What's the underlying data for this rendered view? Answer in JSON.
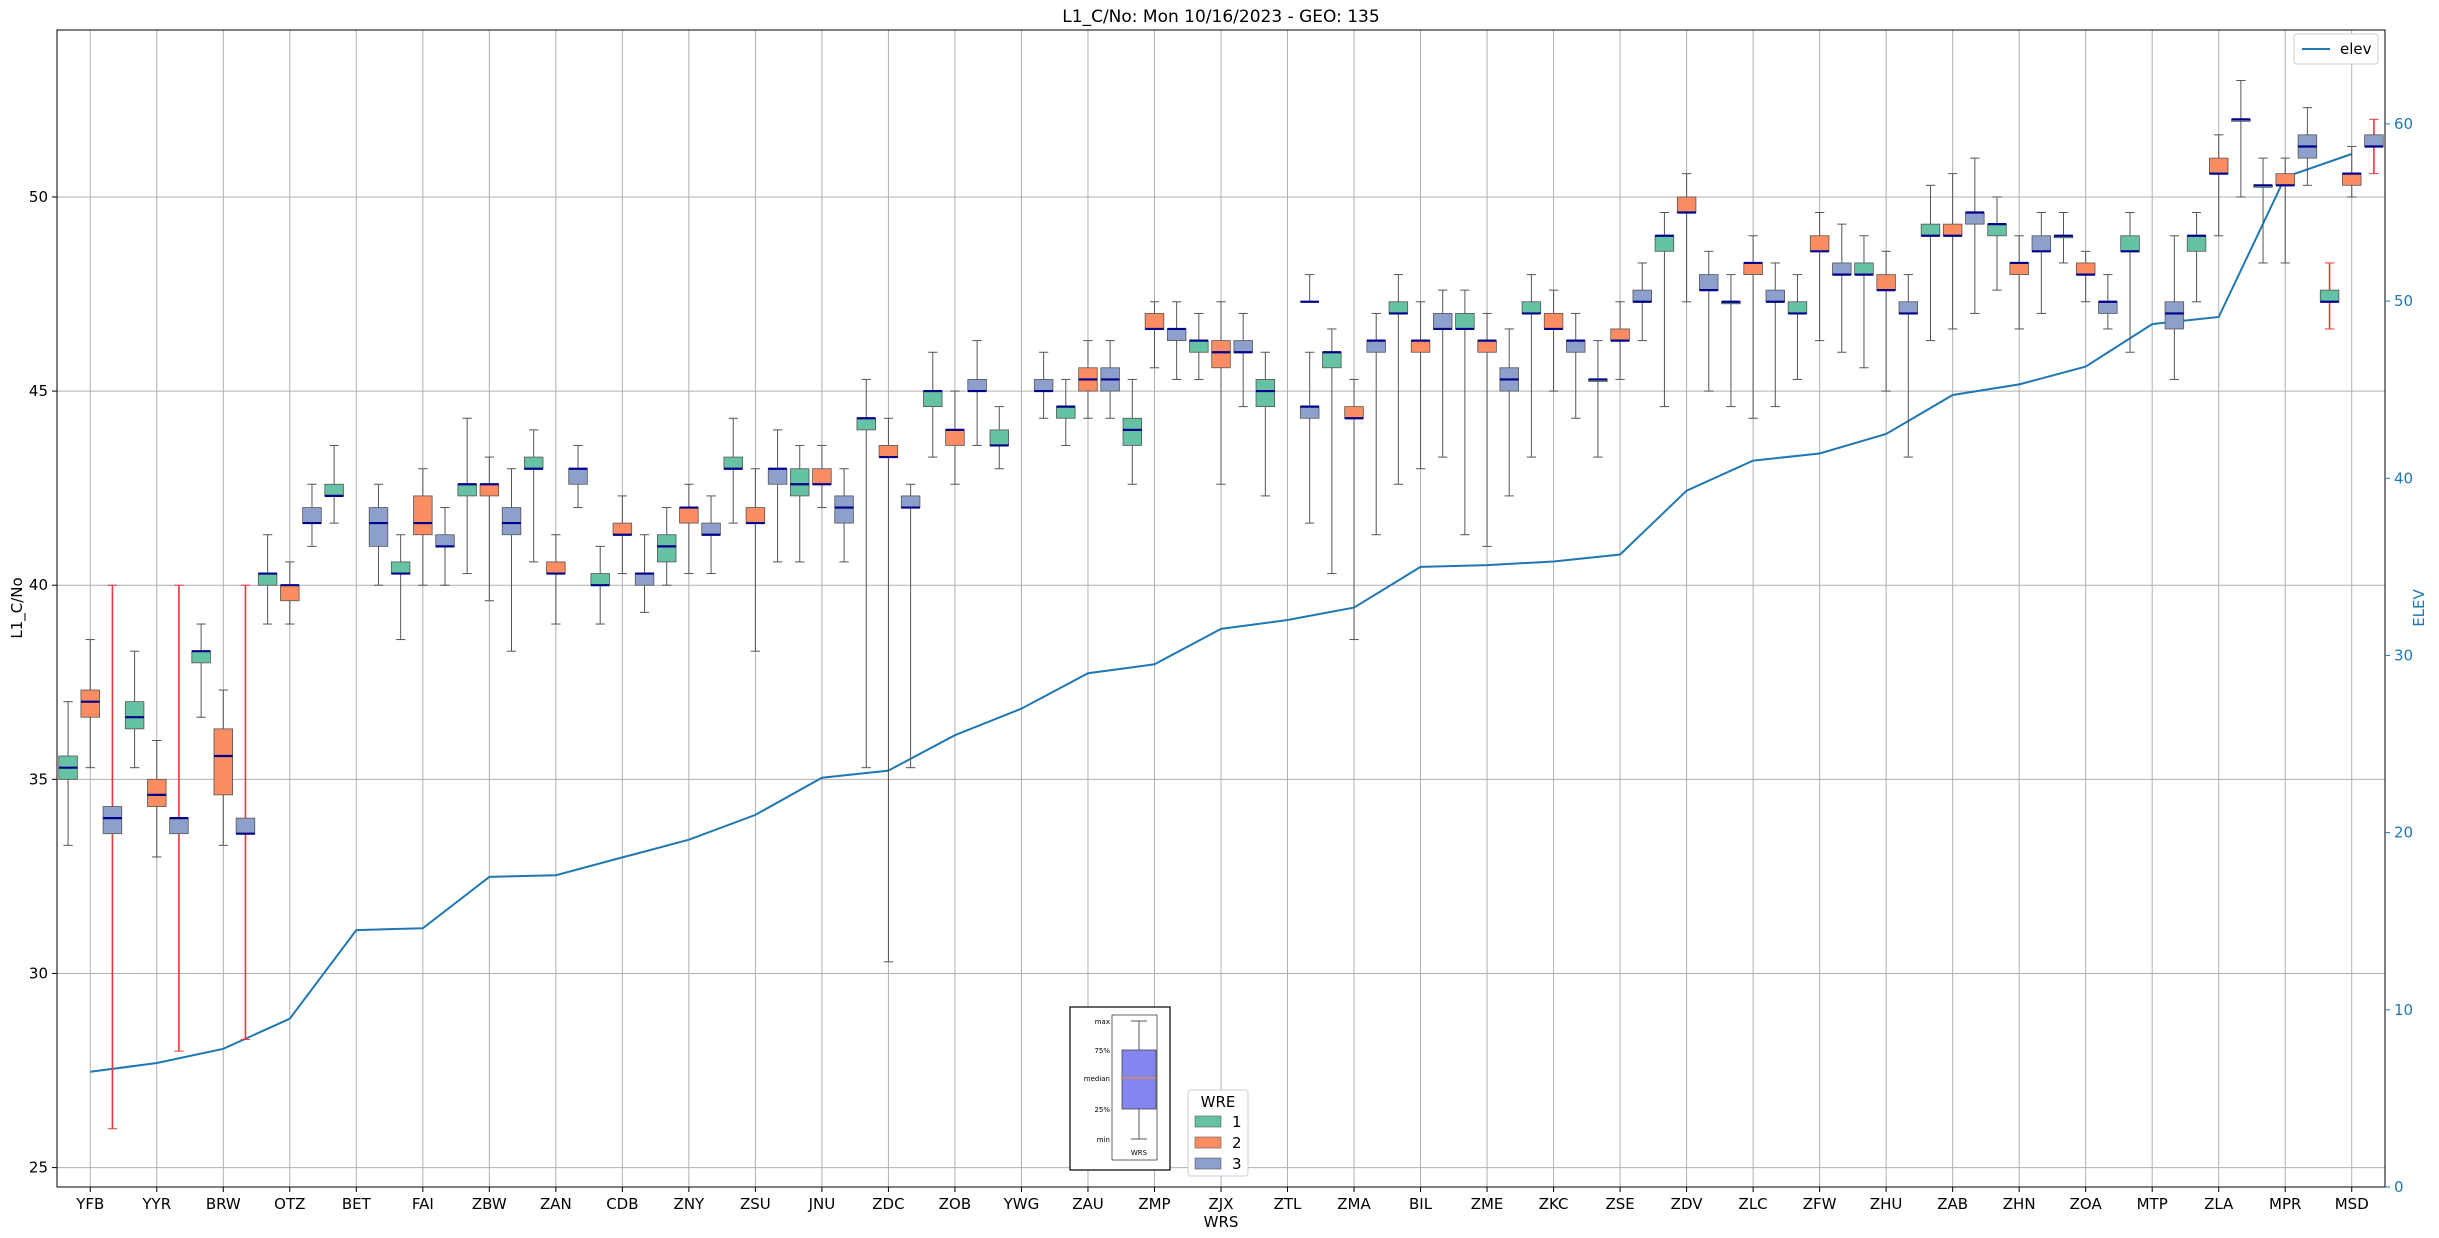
{
  "chart_data": {
    "type": "box",
    "title": "L1_C/No: Mon 10/16/2023 - GEO: 135",
    "xlabel": "WRS",
    "ylabel": "L1_C/No",
    "y2label": "ELEV",
    "ylim": [
      24.5,
      54.3
    ],
    "y2lim": [
      0,
      65.3
    ],
    "yticks": [
      25,
      30,
      35,
      40,
      45,
      50
    ],
    "y2ticks": [
      0,
      10,
      20,
      30,
      40,
      50,
      60
    ],
    "grid": true,
    "categories": [
      "YFB",
      "YYR",
      "BRW",
      "OTZ",
      "BET",
      "FAI",
      "ZBW",
      "ZAN",
      "CDB",
      "ZNY",
      "ZSU",
      "JNU",
      "ZDC",
      "ZOB",
      "YWG",
      "ZAU",
      "ZMP",
      "ZJX",
      "ZTL",
      "ZMA",
      "BIL",
      "ZME",
      "ZKC",
      "ZSE",
      "ZDV",
      "ZLC",
      "ZFW",
      "ZHU",
      "ZAB",
      "ZHN",
      "ZOA",
      "MTP",
      "ZLA",
      "MPR",
      "MSD"
    ],
    "series_colors": {
      "1": "#66c2a5",
      "2": "#fc8d62",
      "3": "#8da0cb"
    },
    "legend_box": {
      "title": "WRE",
      "labels": [
        "1",
        "2",
        "3"
      ]
    },
    "legend_line": {
      "label": "elev",
      "color": "#1f77b4"
    },
    "boxes": [
      {
        "cat": "YFB",
        "wre": 1,
        "min": 33.3,
        "q1": 35.0,
        "med": 35.3,
        "q3": 35.6,
        "max": 37.0
      },
      {
        "cat": "YFB",
        "wre": 2,
        "min": 35.3,
        "q1": 36.6,
        "med": 37.0,
        "q3": 37.3,
        "max": 38.6
      },
      {
        "cat": "YFB",
        "wre": 3,
        "min": 26.0,
        "q1": 33.6,
        "med": 34.0,
        "q3": 34.3,
        "max": 40.0
      },
      {
        "cat": "YYR",
        "wre": 1,
        "min": 35.3,
        "q1": 36.3,
        "med": 36.6,
        "q3": 37.0,
        "max": 38.3
      },
      {
        "cat": "YYR",
        "wre": 2,
        "min": 33.0,
        "q1": 34.3,
        "med": 34.6,
        "q3": 35.0,
        "max": 36.0
      },
      {
        "cat": "YYR",
        "wre": 3,
        "min": 28.0,
        "q1": 33.6,
        "med": 34.0,
        "q3": 34.0,
        "max": 40.0
      },
      {
        "cat": "BRW",
        "wre": 1,
        "min": 36.6,
        "q1": 38.0,
        "med": 38.3,
        "q3": 38.3,
        "max": 39.0
      },
      {
        "cat": "BRW",
        "wre": 2,
        "min": 33.3,
        "q1": 34.6,
        "med": 35.6,
        "q3": 36.3,
        "max": 37.3
      },
      {
        "cat": "BRW",
        "wre": 3,
        "min": 28.3,
        "q1": 33.6,
        "med": 33.6,
        "q3": 34.0,
        "max": 40.0
      },
      {
        "cat": "OTZ",
        "wre": 1,
        "min": 39.0,
        "q1": 40.0,
        "med": 40.3,
        "q3": 40.3,
        "max": 41.3
      },
      {
        "cat": "OTZ",
        "wre": 2,
        "min": 39.0,
        "q1": 39.6,
        "med": 40.0,
        "q3": 40.0,
        "max": 40.6
      },
      {
        "cat": "OTZ",
        "wre": 3,
        "min": 41.0,
        "q1": 41.6,
        "med": 41.6,
        "q3": 42.0,
        "max": 42.6
      },
      {
        "cat": "BET",
        "wre": 1,
        "min": 41.6,
        "q1": 42.3,
        "med": 42.3,
        "q3": 42.6,
        "max": 43.6
      },
      {
        "cat": "BET",
        "wre": 3,
        "min": 40.0,
        "q1": 41.0,
        "med": 41.6,
        "q3": 42.0,
        "max": 42.6
      },
      {
        "cat": "FAI",
        "wre": 1,
        "min": 38.6,
        "q1": 40.3,
        "med": 40.3,
        "q3": 40.6,
        "max": 41.3
      },
      {
        "cat": "FAI",
        "wre": 2,
        "min": 40.0,
        "q1": 41.3,
        "med": 41.6,
        "q3": 42.3,
        "max": 43.0
      },
      {
        "cat": "FAI",
        "wre": 3,
        "min": 40.0,
        "q1": 41.0,
        "med": 41.0,
        "q3": 41.3,
        "max": 42.0
      },
      {
        "cat": "ZBW",
        "wre": 1,
        "min": 40.3,
        "q1": 42.3,
        "med": 42.6,
        "q3": 42.6,
        "max": 44.3
      },
      {
        "cat": "ZBW",
        "wre": 2,
        "min": 39.6,
        "q1": 42.3,
        "med": 42.6,
        "q3": 42.6,
        "max": 43.3
      },
      {
        "cat": "ZBW",
        "wre": 3,
        "min": 38.3,
        "q1": 41.3,
        "med": 41.6,
        "q3": 42.0,
        "max": 43.0
      },
      {
        "cat": "ZAN",
        "wre": 1,
        "min": 40.6,
        "q1": 43.0,
        "med": 43.0,
        "q3": 43.3,
        "max": 44.0
      },
      {
        "cat": "ZAN",
        "wre": 2,
        "min": 39.0,
        "q1": 40.3,
        "med": 40.3,
        "q3": 40.6,
        "max": 41.3
      },
      {
        "cat": "ZAN",
        "wre": 3,
        "min": 42.0,
        "q1": 42.6,
        "med": 43.0,
        "q3": 43.0,
        "max": 43.6
      },
      {
        "cat": "CDB",
        "wre": 1,
        "min": 39.0,
        "q1": 40.0,
        "med": 40.0,
        "q3": 40.3,
        "max": 41.0
      },
      {
        "cat": "CDB",
        "wre": 2,
        "min": 40.3,
        "q1": 41.3,
        "med": 41.3,
        "q3": 41.6,
        "max": 42.3
      },
      {
        "cat": "CDB",
        "wre": 3,
        "min": 39.3,
        "q1": 40.0,
        "med": 40.3,
        "q3": 40.3,
        "max": 41.3
      },
      {
        "cat": "ZNY",
        "wre": 1,
        "min": 40.0,
        "q1": 40.6,
        "med": 41.0,
        "q3": 41.3,
        "max": 42.0
      },
      {
        "cat": "ZNY",
        "wre": 2,
        "min": 40.3,
        "q1": 41.6,
        "med": 42.0,
        "q3": 42.0,
        "max": 42.6
      },
      {
        "cat": "ZNY",
        "wre": 3,
        "min": 40.3,
        "q1": 41.3,
        "med": 41.3,
        "q3": 41.6,
        "max": 42.3
      },
      {
        "cat": "ZSU",
        "wre": 1,
        "min": 41.6,
        "q1": 43.0,
        "med": 43.0,
        "q3": 43.3,
        "max": 44.3
      },
      {
        "cat": "ZSU",
        "wre": 2,
        "min": 38.3,
        "q1": 41.6,
        "med": 41.6,
        "q3": 42.0,
        "max": 43.0
      },
      {
        "cat": "ZSU",
        "wre": 3,
        "min": 40.6,
        "q1": 42.6,
        "med": 43.0,
        "q3": 43.0,
        "max": 44.0
      },
      {
        "cat": "JNU",
        "wre": 1,
        "min": 40.6,
        "q1": 42.3,
        "med": 42.6,
        "q3": 43.0,
        "max": 43.6
      },
      {
        "cat": "JNU",
        "wre": 2,
        "min": 42.0,
        "q1": 42.6,
        "med": 42.6,
        "q3": 43.0,
        "max": 43.6
      },
      {
        "cat": "JNU",
        "wre": 3,
        "min": 40.6,
        "q1": 41.6,
        "med": 42.0,
        "q3": 42.3,
        "max": 43.0
      },
      {
        "cat": "ZDC",
        "wre": 1,
        "min": 35.3,
        "q1": 44.0,
        "med": 44.3,
        "q3": 44.3,
        "max": 45.3
      },
      {
        "cat": "ZDC",
        "wre": 2,
        "min": 30.3,
        "q1": 43.3,
        "med": 43.3,
        "q3": 43.6,
        "max": 44.3
      },
      {
        "cat": "ZDC",
        "wre": 3,
        "min": 35.3,
        "q1": 42.0,
        "med": 42.0,
        "q3": 42.3,
        "max": 42.6
      },
      {
        "cat": "ZOB",
        "wre": 1,
        "min": 43.3,
        "q1": 44.6,
        "med": 45.0,
        "q3": 45.0,
        "max": 46.0
      },
      {
        "cat": "ZOB",
        "wre": 2,
        "min": 42.6,
        "q1": 43.6,
        "med": 44.0,
        "q3": 44.0,
        "max": 45.0
      },
      {
        "cat": "ZOB",
        "wre": 3,
        "min": 43.6,
        "q1": 45.0,
        "med": 45.0,
        "q3": 45.3,
        "max": 46.3
      },
      {
        "cat": "YWG",
        "wre": 1,
        "min": 43.0,
        "q1": 43.6,
        "med": 43.6,
        "q3": 44.0,
        "max": 44.6
      },
      {
        "cat": "YWG",
        "wre": 3,
        "min": 44.3,
        "q1": 45.0,
        "med": 45.0,
        "q3": 45.3,
        "max": 46.0
      },
      {
        "cat": "ZAU",
        "wre": 1,
        "min": 43.6,
        "q1": 44.3,
        "med": 44.6,
        "q3": 44.6,
        "max": 45.3
      },
      {
        "cat": "ZAU",
        "wre": 2,
        "min": 44.3,
        "q1": 45.0,
        "med": 45.3,
        "q3": 45.6,
        "max": 46.3
      },
      {
        "cat": "ZAU",
        "wre": 3,
        "min": 44.3,
        "q1": 45.0,
        "med": 45.3,
        "q3": 45.6,
        "max": 46.3
      },
      {
        "cat": "ZMP",
        "wre": 1,
        "min": 42.6,
        "q1": 43.6,
        "med": 44.0,
        "q3": 44.3,
        "max": 45.3
      },
      {
        "cat": "ZMP",
        "wre": 2,
        "min": 45.6,
        "q1": 46.6,
        "med": 46.6,
        "q3": 47.0,
        "max": 47.3
      },
      {
        "cat": "ZMP",
        "wre": 3,
        "min": 45.3,
        "q1": 46.3,
        "med": 46.6,
        "q3": 46.6,
        "max": 47.3
      },
      {
        "cat": "ZJX",
        "wre": 1,
        "min": 45.3,
        "q1": 46.0,
        "med": 46.3,
        "q3": 46.3,
        "max": 47.0
      },
      {
        "cat": "ZJX",
        "wre": 2,
        "min": 42.6,
        "q1": 45.6,
        "med": 46.0,
        "q3": 46.3,
        "max": 47.3
      },
      {
        "cat": "ZJX",
        "wre": 3,
        "min": 44.6,
        "q1": 46.0,
        "med": 46.0,
        "q3": 46.3,
        "max": 47.0
      },
      {
        "cat": "ZTL",
        "wre": 1,
        "min": 42.3,
        "q1": 44.6,
        "med": 45.0,
        "q3": 45.3,
        "max": 46.0
      },
      {
        "cat": "ZTL",
        "wre": 3,
        "min": 41.6,
        "q1": 44.3,
        "med": 44.6,
        "q3": 44.6,
        "max": 46.0
      },
      {
        "cat": "ZTL",
        "wre": "line",
        "min": 47.3,
        "q1": 47.3,
        "med": 47.3,
        "q3": 47.3,
        "max": 48.0,
        "slot": 2
      },
      {
        "cat": "ZMA",
        "wre": 1,
        "min": 40.3,
        "q1": 45.6,
        "med": 46.0,
        "q3": 46.0,
        "max": 46.6
      },
      {
        "cat": "ZMA",
        "wre": 2,
        "min": 38.6,
        "q1": 44.3,
        "med": 44.3,
        "q3": 44.6,
        "max": 45.3
      },
      {
        "cat": "ZMA",
        "wre": 3,
        "min": 41.3,
        "q1": 46.0,
        "med": 46.3,
        "q3": 46.3,
        "max": 47.0
      },
      {
        "cat": "BIL",
        "wre": 1,
        "min": 42.6,
        "q1": 47.0,
        "med": 47.0,
        "q3": 47.3,
        "max": 48.0
      },
      {
        "cat": "BIL",
        "wre": 2,
        "min": 43.0,
        "q1": 46.0,
        "med": 46.3,
        "q3": 46.3,
        "max": 47.3
      },
      {
        "cat": "BIL",
        "wre": 3,
        "min": 43.3,
        "q1": 46.6,
        "med": 46.6,
        "q3": 47.0,
        "max": 47.6
      },
      {
        "cat": "ZME",
        "wre": 1,
        "min": 41.3,
        "q1": 46.6,
        "med": 46.6,
        "q3": 47.0,
        "max": 47.6
      },
      {
        "cat": "ZME",
        "wre": 2,
        "min": 41.0,
        "q1": 46.0,
        "med": 46.3,
        "q3": 46.3,
        "max": 47.0
      },
      {
        "cat": "ZME",
        "wre": 3,
        "min": 42.3,
        "q1": 45.0,
        "med": 45.3,
        "q3": 45.6,
        "max": 46.6
      },
      {
        "cat": "ZKC",
        "wre": 1,
        "min": 43.3,
        "q1": 47.0,
        "med": 47.0,
        "q3": 47.3,
        "max": 48.0
      },
      {
        "cat": "ZKC",
        "wre": 2,
        "min": 45.0,
        "q1": 46.6,
        "med": 46.6,
        "q3": 47.0,
        "max": 47.6
      },
      {
        "cat": "ZKC",
        "wre": 3,
        "min": 44.3,
        "q1": 46.0,
        "med": 46.3,
        "q3": 46.3,
        "max": 47.0
      },
      {
        "cat": "ZSE",
        "wre": 1,
        "min": 43.3,
        "q1": 45.3,
        "med": 45.3,
        "q3": 45.3,
        "max": 46.3
      },
      {
        "cat": "ZSE",
        "wre": 2,
        "min": 45.3,
        "q1": 46.3,
        "med": 46.3,
        "q3": 46.6,
        "max": 47.3
      },
      {
        "cat": "ZSE",
        "wre": 3,
        "min": 46.3,
        "q1": 47.3,
        "med": 47.3,
        "q3": 47.6,
        "max": 48.3
      },
      {
        "cat": "ZDV",
        "wre": 1,
        "min": 44.6,
        "q1": 48.6,
        "med": 49.0,
        "q3": 49.0,
        "max": 49.6
      },
      {
        "cat": "ZDV",
        "wre": 2,
        "min": 47.3,
        "q1": 49.6,
        "med": 49.6,
        "q3": 50.0,
        "max": 50.6
      },
      {
        "cat": "ZDV",
        "wre": 3,
        "min": 45.0,
        "q1": 47.6,
        "med": 47.6,
        "q3": 48.0,
        "max": 48.6
      },
      {
        "cat": "ZLC",
        "wre": 1,
        "min": 44.6,
        "q1": 47.3,
        "med": 47.3,
        "q3": 47.3,
        "max": 48.0
      },
      {
        "cat": "ZLC",
        "wre": 2,
        "min": 44.3,
        "q1": 48.0,
        "med": 48.3,
        "q3": 48.3,
        "max": 49.0
      },
      {
        "cat": "ZLC",
        "wre": 3,
        "min": 44.6,
        "q1": 47.3,
        "med": 47.3,
        "q3": 47.6,
        "max": 48.3
      },
      {
        "cat": "ZFW",
        "wre": 1,
        "min": 45.3,
        "q1": 47.0,
        "med": 47.0,
        "q3": 47.3,
        "max": 48.0
      },
      {
        "cat": "ZFW",
        "wre": 2,
        "min": 46.3,
        "q1": 48.6,
        "med": 48.6,
        "q3": 49.0,
        "max": 49.6
      },
      {
        "cat": "ZFW",
        "wre": 3,
        "min": 46.0,
        "q1": 48.0,
        "med": 48.0,
        "q3": 48.3,
        "max": 49.3
      },
      {
        "cat": "ZHU",
        "wre": 1,
        "min": 45.6,
        "q1": 48.0,
        "med": 48.0,
        "q3": 48.3,
        "max": 49.0
      },
      {
        "cat": "ZHU",
        "wre": 2,
        "min": 45.0,
        "q1": 47.6,
        "med": 47.6,
        "q3": 48.0,
        "max": 48.6
      },
      {
        "cat": "ZHU",
        "wre": 3,
        "min": 43.3,
        "q1": 47.0,
        "med": 47.0,
        "q3": 47.3,
        "max": 48.0
      },
      {
        "cat": "ZAB",
        "wre": 1,
        "min": 46.3,
        "q1": 49.0,
        "med": 49.0,
        "q3": 49.3,
        "max": 50.3
      },
      {
        "cat": "ZAB",
        "wre": 2,
        "min": 46.6,
        "q1": 49.0,
        "med": 49.0,
        "q3": 49.3,
        "max": 50.6
      },
      {
        "cat": "ZAB",
        "wre": 3,
        "min": 47.0,
        "q1": 49.3,
        "med": 49.6,
        "q3": 49.6,
        "max": 51.0
      },
      {
        "cat": "ZHN",
        "wre": 1,
        "min": 47.6,
        "q1": 49.0,
        "med": 49.3,
        "q3": 49.3,
        "max": 50.0
      },
      {
        "cat": "ZHN",
        "wre": 2,
        "min": 46.6,
        "q1": 48.0,
        "med": 48.3,
        "q3": 48.3,
        "max": 49.0
      },
      {
        "cat": "ZHN",
        "wre": 3,
        "min": 47.0,
        "q1": 48.6,
        "med": 48.6,
        "q3": 49.0,
        "max": 49.6
      },
      {
        "cat": "ZOA",
        "wre": 1,
        "min": 48.3,
        "q1": 49.0,
        "med": 49.0,
        "q3": 49.0,
        "max": 49.6
      },
      {
        "cat": "ZOA",
        "wre": 2,
        "min": 47.3,
        "q1": 48.0,
        "med": 48.0,
        "q3": 48.3,
        "max": 48.6
      },
      {
        "cat": "ZOA",
        "wre": 3,
        "min": 46.6,
        "q1": 47.0,
        "med": 47.3,
        "q3": 47.3,
        "max": 48.0
      },
      {
        "cat": "MTP",
        "wre": 1,
        "min": 46.0,
        "q1": 48.6,
        "med": 48.6,
        "q3": 49.0,
        "max": 49.6
      },
      {
        "cat": "MTP",
        "wre": 3,
        "min": 45.3,
        "q1": 46.6,
        "med": 47.0,
        "q3": 47.3,
        "max": 49.0
      },
      {
        "cat": "ZLA",
        "wre": 1,
        "min": 47.3,
        "q1": 48.6,
        "med": 49.0,
        "q3": 49.0,
        "max": 49.6
      },
      {
        "cat": "ZLA",
        "wre": 2,
        "min": 49.0,
        "q1": 50.6,
        "med": 50.6,
        "q3": 51.0,
        "max": 51.6
      },
      {
        "cat": "ZLA",
        "wre": 3,
        "min": 50.0,
        "q1": 52.0,
        "med": 52.0,
        "q3": 52.0,
        "max": 53.0
      },
      {
        "cat": "MPR",
        "wre": 1,
        "min": 48.3,
        "q1": 50.3,
        "med": 50.3,
        "q3": 50.3,
        "max": 51.0
      },
      {
        "cat": "MPR",
        "wre": 2,
        "min": 48.3,
        "q1": 50.3,
        "med": 50.3,
        "q3": 50.6,
        "max": 51.0
      },
      {
        "cat": "MPR",
        "wre": 3,
        "min": 50.3,
        "q1": 51.0,
        "med": 51.3,
        "q3": 51.6,
        "max": 52.3
      },
      {
        "cat": "MSD",
        "wre": 1,
        "min": 46.6,
        "q1": 47.3,
        "med": 47.3,
        "q3": 47.6,
        "max": 48.3
      },
      {
        "cat": "MSD",
        "wre": 2,
        "min": 50.0,
        "q1": 50.3,
        "med": 50.6,
        "q3": 50.6,
        "max": 51.3
      },
      {
        "cat": "MSD",
        "wre": 3,
        "min": 50.6,
        "q1": 51.3,
        "med": 51.3,
        "q3": 51.6,
        "max": 52.0
      }
    ],
    "red_whiskers": [
      "YFB-3",
      "YYR-3",
      "BRW-3",
      "MSD-1",
      "MSD-3"
    ],
    "elev": [
      6.5,
      7.0,
      7.8,
      9.5,
      14.5,
      14.6,
      17.5,
      17.6,
      18.6,
      19.6,
      21.0,
      23.1,
      23.5,
      25.5,
      27.0,
      29.0,
      29.5,
      31.5,
      32.0,
      32.7,
      35.0,
      35.1,
      35.3,
      35.7,
      39.3,
      41.0,
      41.4,
      42.5,
      44.7,
      45.3,
      46.3,
      48.7,
      49.1,
      57.0,
      58.3
    ],
    "inset": {
      "labels": [
        "max",
        "75%",
        "median",
        "25%",
        "min"
      ],
      "xlabel": "WRS"
    }
  }
}
